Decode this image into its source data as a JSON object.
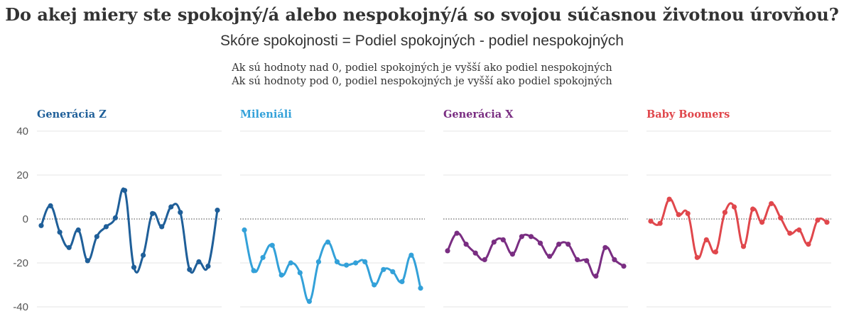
{
  "title": "Do akej miery ste spokojný/á alebo nespokojný/á so svojou súčasnou životnou úrovňou?",
  "subtitle": "Skóre spokojnosti = Podiel spokojných - podiel nespokojných",
  "notes": [
    "Ak sú hodnoty nad 0, podiel spokojných je vyšší ako podiel nespokojných",
    "Ak sú hodnoty pod 0, podiel nespokojných je vyšší ako podiel spokojných"
  ],
  "chart_data": {
    "type": "line",
    "layout": "small-multiples",
    "ylim": [
      -40,
      40
    ],
    "yticks": [
      "40",
      "20",
      "0",
      "-20",
      "-40"
    ],
    "grid": true,
    "zero_line": "dotted",
    "panels": [
      {
        "name": "Generácia Z",
        "color": "#1f5f99",
        "values": [
          -3,
          6,
          -6,
          -13,
          -5,
          -19,
          -8,
          -3.5,
          0.5,
          13,
          -22,
          -16.5,
          2.5,
          -3.5,
          5.5,
          3,
          -23,
          -19.5,
          -21.5,
          4
        ]
      },
      {
        "name": "Mileniáli",
        "color": "#33a1d9",
        "values": [
          -5,
          -23.5,
          -17.5,
          -12,
          -25.5,
          -20,
          -24.5,
          -37.5,
          -19.5,
          -10.5,
          -19.5,
          -21,
          -20,
          -19.5,
          -30,
          -23,
          -24,
          -28.5,
          -16.5,
          -31.5
        ]
      },
      {
        "name": "Generácia X",
        "color": "#7a2e82",
        "values": [
          -14.5,
          -6.5,
          -11.5,
          -15.5,
          -18.5,
          -10.5,
          -9.5,
          -16,
          -8,
          -8,
          -11,
          -17,
          -11.5,
          -11.5,
          -18.5,
          -19,
          -26,
          -13,
          -18.5,
          -21.5
        ]
      },
      {
        "name": "Baby Boomers",
        "color": "#e0474c",
        "values": [
          -1,
          -2,
          9,
          2,
          2.5,
          -17.5,
          -9.5,
          -15,
          3,
          5.5,
          -12.5,
          4.5,
          -1.5,
          7,
          0.5,
          -6.5,
          -5,
          -11.5,
          -0.5,
          -1.5
        ]
      }
    ]
  }
}
